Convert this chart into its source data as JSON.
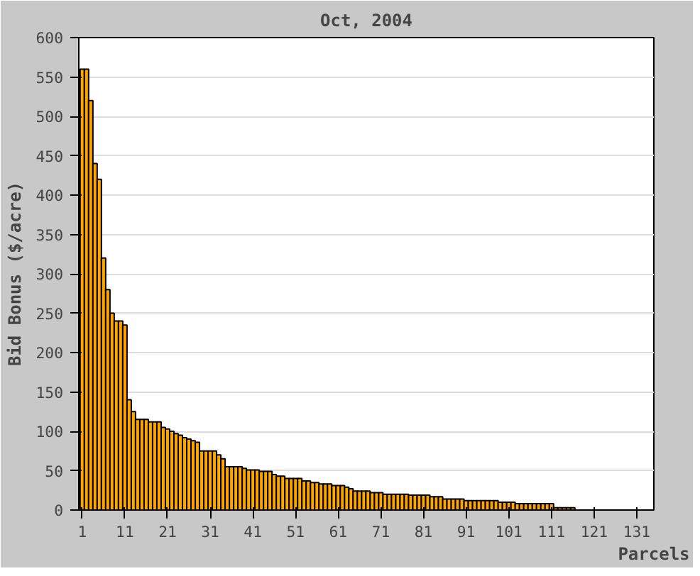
{
  "chart_data": {
    "type": "bar",
    "title": "Oct, 2004",
    "xlabel": "Parcels",
    "ylabel": "Bid Bonus ($/acre)",
    "x": [
      1,
      2,
      3,
      4,
      5,
      6,
      7,
      8,
      9,
      10,
      11,
      12,
      13,
      14,
      15,
      16,
      17,
      18,
      19,
      20,
      21,
      22,
      23,
      24,
      25,
      26,
      27,
      28,
      29,
      30,
      31,
      32,
      33,
      34,
      35,
      36,
      37,
      38,
      39,
      40,
      41,
      42,
      43,
      44,
      45,
      46,
      47,
      48,
      49,
      50,
      51,
      52,
      53,
      54,
      55,
      56,
      57,
      58,
      59,
      60,
      61,
      62,
      63,
      64,
      65,
      66,
      67,
      68,
      69,
      70,
      71,
      72,
      73,
      74,
      75,
      76,
      77,
      78,
      79,
      80,
      81,
      82,
      83,
      84,
      85,
      86,
      87,
      88,
      89,
      90,
      91,
      92,
      93,
      94,
      95,
      96,
      97,
      98,
      99,
      100,
      101,
      102,
      103,
      104,
      105,
      106,
      107,
      108,
      109,
      110,
      111,
      112,
      113,
      114,
      115,
      116
    ],
    "values": [
      560,
      560,
      520,
      440,
      420,
      320,
      280,
      250,
      240,
      240,
      235,
      140,
      125,
      115,
      115,
      115,
      112,
      112,
      112,
      105,
      103,
      100,
      97,
      95,
      92,
      90,
      88,
      86,
      75,
      75,
      75,
      75,
      70,
      65,
      55,
      55,
      55,
      55,
      53,
      51,
      51,
      51,
      49,
      49,
      49,
      45,
      43,
      43,
      40,
      40,
      40,
      40,
      37,
      37,
      35,
      35,
      33,
      33,
      33,
      31,
      31,
      31,
      29,
      27,
      24,
      24,
      24,
      24,
      22,
      22,
      22,
      20,
      20,
      20,
      20,
      20,
      20,
      19,
      19,
      19,
      19,
      19,
      17,
      17,
      17,
      14,
      14,
      14,
      14,
      14,
      12,
      12,
      12,
      12,
      12,
      12,
      12,
      12,
      10,
      10,
      10,
      10,
      8,
      8,
      8,
      8,
      8,
      8,
      8,
      8,
      8,
      3,
      3,
      3,
      3,
      3
    ],
    "color": "#ffa500",
    "xlim": [
      0.2,
      135
    ],
    "xticks": [
      1,
      11,
      21,
      31,
      41,
      51,
      61,
      71,
      81,
      91,
      101,
      111,
      121,
      131
    ],
    "ylim": [
      0,
      600
    ],
    "yticks": [
      0,
      50,
      100,
      150,
      200,
      250,
      300,
      350,
      400,
      450,
      500,
      550,
      600
    ],
    "grid": "y"
  }
}
